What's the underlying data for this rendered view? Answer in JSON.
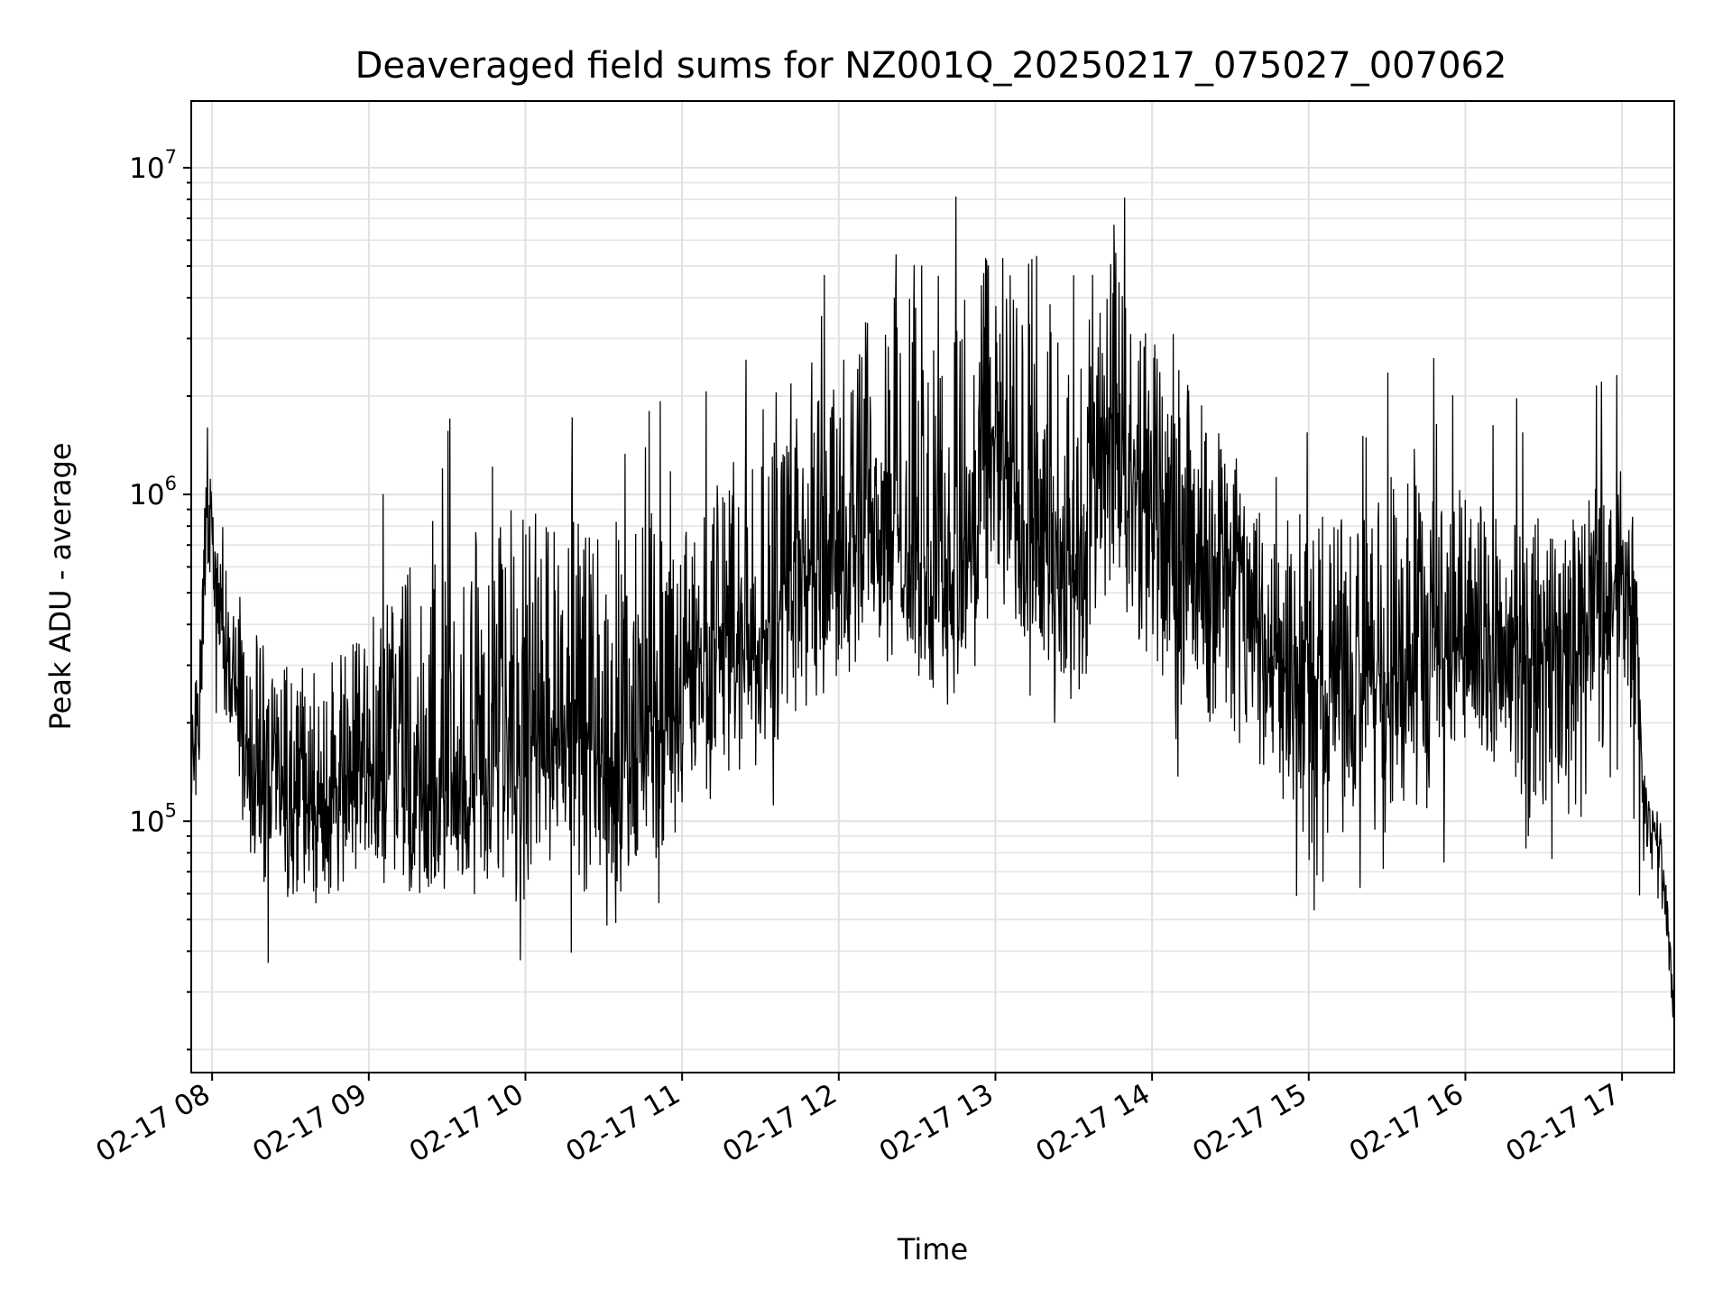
{
  "chart_data": {
    "type": "line",
    "title": "Deaveraged field sums for NZ001Q_20250217_075027_007062",
    "xlabel": "Time",
    "ylabel": "Peak ADU - average",
    "yscale": "log",
    "ylim": [
      17000,
      16000000
    ],
    "xlim": [
      "2025-02-17 07:52",
      "2025-02-17 17:20"
    ],
    "grid": true,
    "grid_minor_y": true,
    "legend": "none",
    "line_color": "#000000",
    "y_ticks": [
      {
        "value": 100000,
        "base": "10",
        "exp": "5"
      },
      {
        "value": 1000000,
        "base": "10",
        "exp": "6"
      },
      {
        "value": 10000000,
        "base": "10",
        "exp": "7"
      }
    ],
    "x_ticks": [
      {
        "value": "2025-02-17 08:00",
        "label": "02-17 08"
      },
      {
        "value": "2025-02-17 09:00",
        "label": "02-17 09"
      },
      {
        "value": "2025-02-17 10:00",
        "label": "02-17 10"
      },
      {
        "value": "2025-02-17 11:00",
        "label": "02-17 11"
      },
      {
        "value": "2025-02-17 12:00",
        "label": "02-17 12"
      },
      {
        "value": "2025-02-17 13:00",
        "label": "02-17 13"
      },
      {
        "value": "2025-02-17 14:00",
        "label": "02-17 14"
      },
      {
        "value": "2025-02-17 15:00",
        "label": "02-17 15"
      },
      {
        "value": "2025-02-17 16:00",
        "label": "02-17 16"
      },
      {
        "value": "2025-02-17 17:00",
        "label": "02-17 17"
      }
    ],
    "series": [
      {
        "x": [
          "2025-02-17 07:52",
          "2025-02-17 07:55",
          "2025-02-17 07:58",
          "2025-02-17 08:00",
          "2025-02-17 08:03",
          "2025-02-17 08:06",
          "2025-02-17 08:10",
          "2025-02-17 08:15",
          "2025-02-17 08:20",
          "2025-02-17 08:30",
          "2025-02-17 08:40",
          "2025-02-17 08:50",
          "2025-02-17 09:00",
          "2025-02-17 09:15",
          "2025-02-17 09:30",
          "2025-02-17 09:45",
          "2025-02-17 10:00",
          "2025-02-17 10:15",
          "2025-02-17 10:30",
          "2025-02-17 10:45",
          "2025-02-17 11:00",
          "2025-02-17 11:15",
          "2025-02-17 11:30",
          "2025-02-17 11:45",
          "2025-02-17 12:00",
          "2025-02-17 12:15",
          "2025-02-17 12:30",
          "2025-02-17 12:45",
          "2025-02-17 13:00",
          "2025-02-17 13:15",
          "2025-02-17 13:30",
          "2025-02-17 13:45",
          "2025-02-17 14:00",
          "2025-02-17 14:15",
          "2025-02-17 14:30",
          "2025-02-17 14:45",
          "2025-02-17 15:00",
          "2025-02-17 15:15",
          "2025-02-17 15:30",
          "2025-02-17 15:45",
          "2025-02-17 16:00",
          "2025-02-17 16:15",
          "2025-02-17 16:30",
          "2025-02-17 16:45",
          "2025-02-17 17:00",
          "2025-02-17 17:05",
          "2025-02-17 17:08",
          "2025-02-17 17:12",
          "2025-02-17 17:16",
          "2025-02-17 17:20"
        ],
        "values": [
          150000,
          200000,
          1200000,
          700000,
          450000,
          300000,
          250000,
          150000,
          130000,
          120000,
          110000,
          130000,
          150000,
          120000,
          110000,
          140000,
          160000,
          200000,
          150000,
          170000,
          250000,
          400000,
          350000,
          600000,
          700000,
          1000000,
          600000,
          500000,
          1500000,
          700000,
          600000,
          2000000,
          800000,
          600000,
          700000,
          300000,
          250000,
          300000,
          250000,
          400000,
          300000,
          350000,
          300000,
          350000,
          600000,
          500000,
          120000,
          100000,
          70000,
          25000
        ],
        "envelope_low": [
          100000,
          130000,
          450000,
          400000,
          300000,
          150000,
          80000,
          65000,
          60000,
          55000,
          55000,
          55000,
          60000,
          55000,
          55000,
          55000,
          55000,
          58000,
          60000,
          60000,
          75000,
          100000,
          150000,
          200000,
          250000,
          300000,
          250000,
          200000,
          400000,
          300000,
          200000,
          500000,
          250000,
          200000,
          180000,
          130000,
          75000,
          80000,
          90000,
          100000,
          150000,
          120000,
          90000,
          100000,
          200000,
          150000,
          70000,
          60000,
          50000,
          20000
        ],
        "envelope_high": [
          200000,
          350000,
          1800000,
          900000,
          650000,
          500000,
          500000,
          400000,
          350000,
          300000,
          300000,
          350000,
          500000,
          600000,
          800000,
          900000,
          900000,
          850000,
          800000,
          900000,
          900000,
          1100000,
          1300000,
          1800000,
          2500000,
          4000000,
          6000000,
          4000000,
          6000000,
          3500000,
          5000000,
          6000000,
          3000000,
          2200000,
          1500000,
          1000000,
          800000,
          1000000,
          1200000,
          1300000,
          1000000,
          900000,
          900000,
          1000000,
          1200000,
          800000,
          150000,
          120000,
          90000,
          30000
        ]
      }
    ]
  }
}
